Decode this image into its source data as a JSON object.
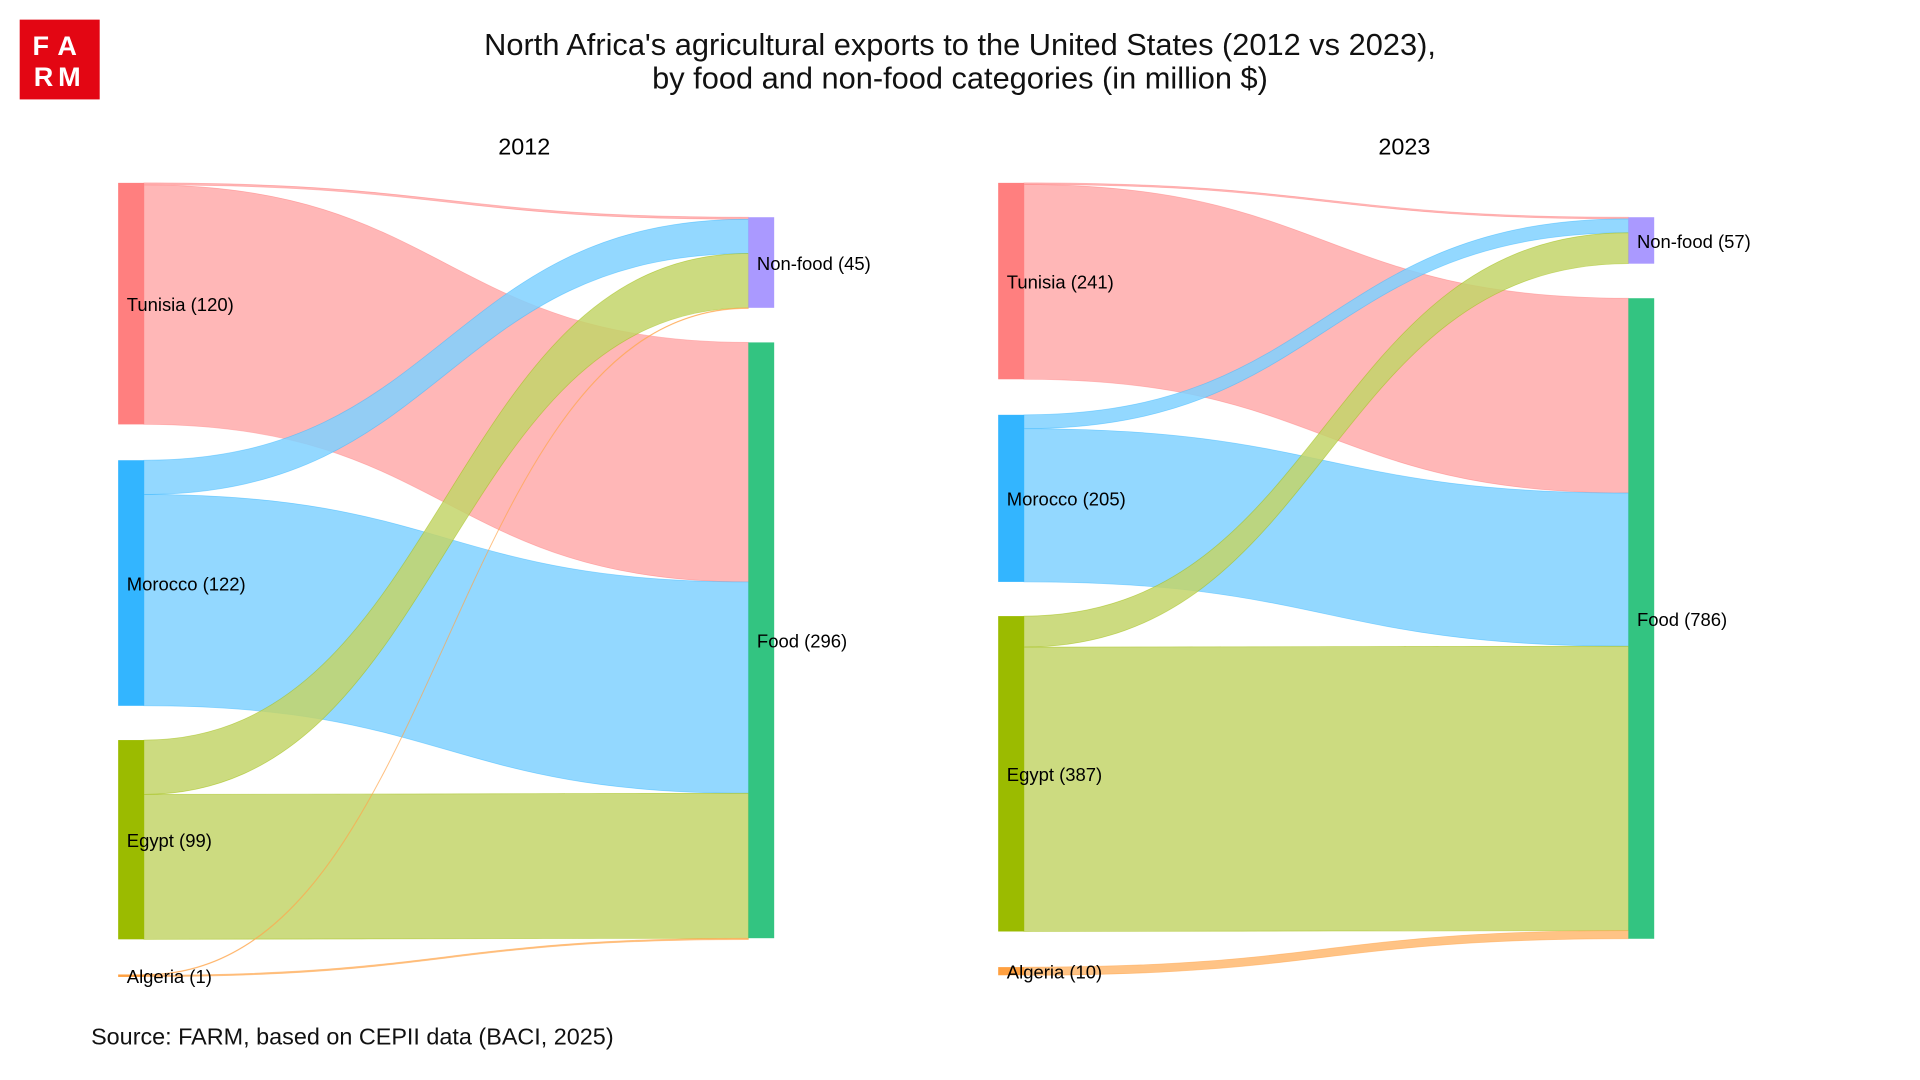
{
  "logo": {
    "text": "FARM",
    "color": "#E30613"
  },
  "title": {
    "line1": "North Africa's agricultural exports to the United States (2012 vs 2023),",
    "line2": "by food and non-food categories (in million $)"
  },
  "source": "Source: FARM, based on CEPII data (BACI, 2025)",
  "chart_data": [
    {
      "type": "sankey",
      "title": "2012",
      "units": "million $",
      "sources": [
        {
          "name": "Tunisia",
          "label": "Tunisia (120)",
          "value": 120,
          "color": "#FF7F7F",
          "link_color": "#FFAAAA"
        },
        {
          "name": "Morocco",
          "label": "Morocco (122)",
          "value": 122,
          "color": "#33B5FF",
          "link_color": "#80D1FF"
        },
        {
          "name": "Egypt",
          "label": "Egypt (99)",
          "value": 99,
          "color": "#9BBB00",
          "link_color": "#C3D56A"
        },
        {
          "name": "Algeria",
          "label": "Algeria (1)",
          "value": 1,
          "color": "#FFA040",
          "link_color": "#FFB870"
        }
      ],
      "targets": [
        {
          "name": "Non-food",
          "label": "Non-food (45)",
          "value": 45,
          "color": "#AA99FF"
        },
        {
          "name": "Food",
          "label": "Food (296)",
          "value": 296,
          "color": "#33C481"
        }
      ],
      "links": [
        {
          "source": "Tunisia",
          "target": "Non-food",
          "value": 1
        },
        {
          "source": "Tunisia",
          "target": "Food",
          "value": 119
        },
        {
          "source": "Morocco",
          "target": "Non-food",
          "value": 17
        },
        {
          "source": "Morocco",
          "target": "Food",
          "value": 105
        },
        {
          "source": "Egypt",
          "target": "Non-food",
          "value": 27
        },
        {
          "source": "Egypt",
          "target": "Food",
          "value": 72
        },
        {
          "source": "Algeria",
          "target": "Non-food",
          "value": 0.3
        },
        {
          "source": "Algeria",
          "target": "Food",
          "value": 0.7
        }
      ]
    },
    {
      "type": "sankey",
      "title": "2023",
      "units": "million $",
      "sources": [
        {
          "name": "Tunisia",
          "label": "Tunisia (241)",
          "value": 241,
          "color": "#FF7F7F",
          "link_color": "#FFAAAA"
        },
        {
          "name": "Morocco",
          "label": "Morocco (205)",
          "value": 205,
          "color": "#33B5FF",
          "link_color": "#80D1FF"
        },
        {
          "name": "Egypt",
          "label": "Egypt (387)",
          "value": 387,
          "color": "#9BBB00",
          "link_color": "#C3D56A"
        },
        {
          "name": "Algeria",
          "label": "Algeria (10)",
          "value": 10,
          "color": "#FFA040",
          "link_color": "#FFB870"
        }
      ],
      "targets": [
        {
          "name": "Non-food",
          "label": "Non-food (57)",
          "value": 57,
          "color": "#AA99FF"
        },
        {
          "name": "Food",
          "label": "Food (786)",
          "value": 786,
          "color": "#33C481"
        }
      ],
      "links": [
        {
          "source": "Tunisia",
          "target": "Non-food",
          "value": 2
        },
        {
          "source": "Tunisia",
          "target": "Food",
          "value": 239
        },
        {
          "source": "Morocco",
          "target": "Non-food",
          "value": 17
        },
        {
          "source": "Morocco",
          "target": "Food",
          "value": 188
        },
        {
          "source": "Egypt",
          "target": "Non-food",
          "value": 38
        },
        {
          "source": "Egypt",
          "target": "Food",
          "value": 349
        },
        {
          "source": "Algeria",
          "target": "Non-food",
          "value": 0
        },
        {
          "source": "Algeria",
          "target": "Food",
          "value": 10
        }
      ]
    }
  ]
}
